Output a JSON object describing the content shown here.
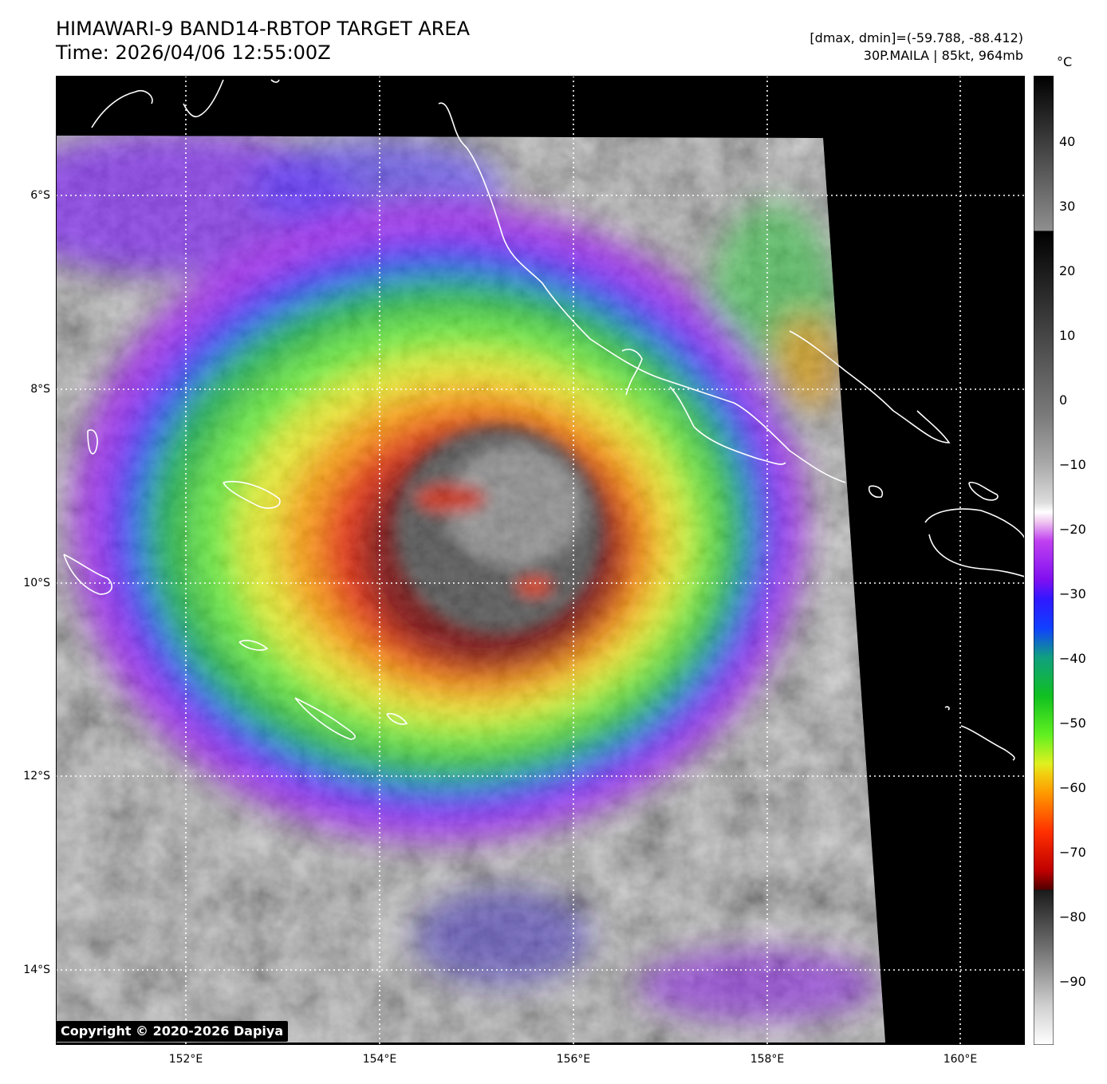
{
  "header": {
    "title_line1": "HIMAWARI-9 BAND14-RBTOP TARGET AREA",
    "title_line2": "Time: 2026/04/06 12:55:00Z",
    "info_line1": "[dmax, dmin]=(-59.788, -88.412)",
    "info_line2": "30P.MAILA | 85kt, 964mb"
  },
  "colorbar": {
    "unit": "°C",
    "ticks": [
      "40",
      "30",
      "20",
      "10",
      "0",
      "−10",
      "−20",
      "−30",
      "−40",
      "−50",
      "−60",
      "−70",
      "−80",
      "−90"
    ],
    "range": [
      -100,
      50
    ]
  },
  "axes": {
    "lat_labels": [
      "6°S",
      "8°S",
      "10°S",
      "12°S",
      "14°S"
    ],
    "lon_labels": [
      "152°E",
      "154°E",
      "156°E",
      "158°E",
      "160°E"
    ],
    "lat_range": [
      -14.8,
      -4.8
    ],
    "lon_range": [
      150.65,
      160.65
    ]
  },
  "storm": {
    "name": "30P.MAILA",
    "center_lat": -9.6,
    "center_lon": 155.3
  },
  "footer": {
    "copyright": "Copyright © 2020-2026 Dapiya"
  }
}
